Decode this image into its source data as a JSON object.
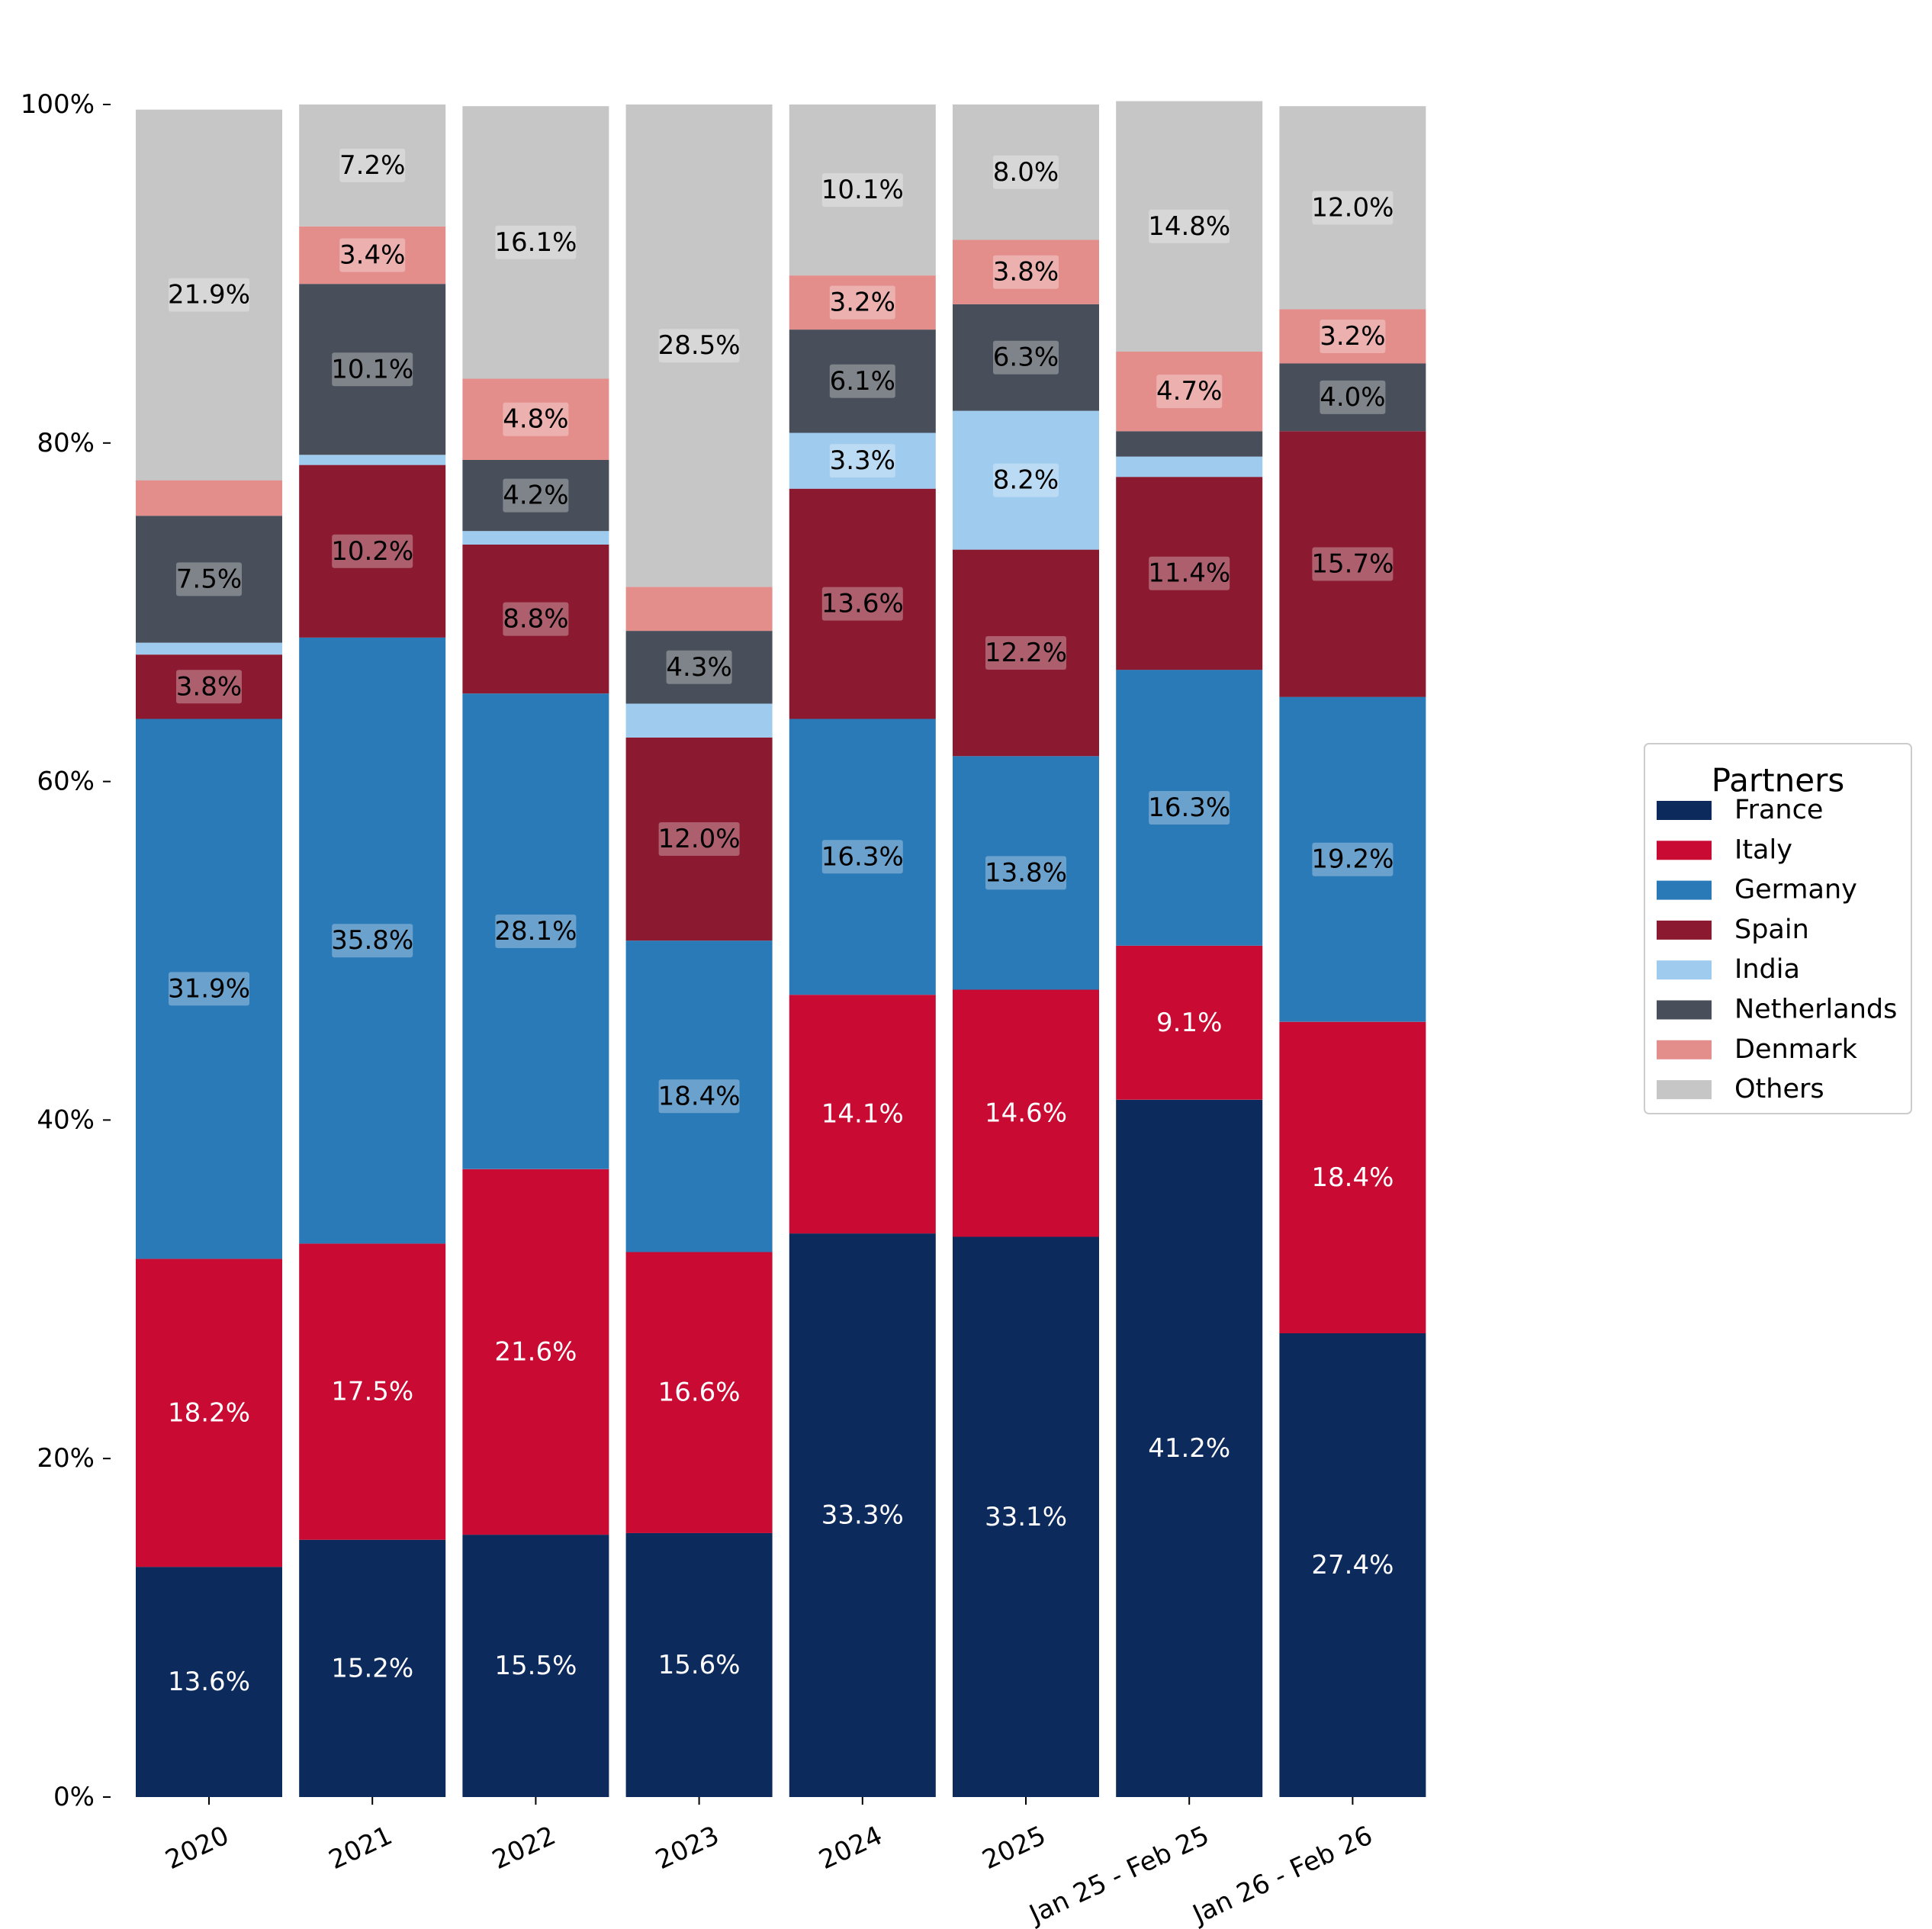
{
  "chart_data": {
    "type": "bar",
    "stacked": true,
    "normalized": true,
    "title": "",
    "xlabel": "",
    "ylabel": "",
    "ylim": [
      0,
      100
    ],
    "yticks": [
      "0%",
      "20%",
      "40%",
      "60%",
      "80%",
      "100%"
    ],
    "categories": [
      "2020",
      "2021",
      "2022",
      "2023",
      "2024",
      "2025",
      "Jan 25 - Feb 25",
      "Jan 26 - Feb 26"
    ],
    "legend": {
      "title": "Partners",
      "position": "right"
    },
    "grid": false,
    "series": [
      {
        "name": "France",
        "color": "#0c2a5b",
        "text_color": "#ffffff",
        "label_box": false,
        "values": [
          13.6,
          15.2,
          15.5,
          15.6,
          33.3,
          33.1,
          41.2,
          27.4
        ],
        "labels": [
          "13.6%",
          "15.2%",
          "15.5%",
          "15.6%",
          "33.3%",
          "33.1%",
          "41.2%",
          "27.4%"
        ]
      },
      {
        "name": "Italy",
        "color": "#c90a33",
        "text_color": "#ffffff",
        "label_box": false,
        "values": [
          18.2,
          17.5,
          21.6,
          16.6,
          14.1,
          14.6,
          9.1,
          18.4
        ],
        "labels": [
          "18.2%",
          "17.5%",
          "21.6%",
          "16.6%",
          "14.1%",
          "14.6%",
          "9.1%",
          "18.4%"
        ]
      },
      {
        "name": "Germany",
        "color": "#2a7ab8",
        "text_color": "#000000",
        "label_box": true,
        "values": [
          31.9,
          35.8,
          28.1,
          18.4,
          16.3,
          13.8,
          16.3,
          19.2
        ],
        "labels": [
          "31.9%",
          "35.8%",
          "28.1%",
          "18.4%",
          "16.3%",
          "13.8%",
          "16.3%",
          "19.2%"
        ]
      },
      {
        "name": "Spain",
        "color": "#8b1a30",
        "text_color": "#000000",
        "label_box": true,
        "values": [
          3.8,
          10.2,
          8.8,
          12.0,
          13.6,
          12.2,
          11.4,
          15.7
        ],
        "labels": [
          "3.8%",
          "10.2%",
          "8.8%",
          "12.0%",
          "13.6%",
          "12.2%",
          "11.4%",
          "15.7%"
        ]
      },
      {
        "name": "India",
        "color": "#9ecbee",
        "text_color": "#000000",
        "label_box": true,
        "values": [
          0.7,
          0.6,
          0.8,
          2.0,
          3.3,
          8.2,
          1.2,
          0.0
        ],
        "labels": [
          "",
          "",
          "",
          "",
          "3.3%",
          "8.2%",
          "",
          ""
        ]
      },
      {
        "name": "Netherlands",
        "color": "#484f5a",
        "text_color": "#000000",
        "label_box": true,
        "values": [
          7.5,
          10.1,
          4.2,
          4.3,
          6.1,
          6.3,
          1.5,
          4.0
        ],
        "labels": [
          "7.5%",
          "10.1%",
          "4.2%",
          "4.3%",
          "6.1%",
          "6.3%",
          "",
          "4.0%"
        ]
      },
      {
        "name": "Denmark",
        "color": "#e48e8c",
        "text_color": "#000000",
        "label_box": true,
        "values": [
          2.1,
          3.4,
          4.8,
          2.6,
          3.2,
          3.8,
          4.7,
          3.2
        ],
        "labels": [
          "",
          "3.4%",
          "4.8%",
          "",
          "3.2%",
          "3.8%",
          "4.7%",
          "3.2%"
        ]
      },
      {
        "name": "Others",
        "color": "#c6c6c6",
        "text_color": "#000000",
        "label_box": true,
        "values": [
          21.9,
          7.2,
          16.1,
          28.5,
          10.1,
          8.0,
          14.8,
          12.0
        ],
        "labels": [
          "21.9%",
          "7.2%",
          "16.1%",
          "28.5%",
          "10.1%",
          "8.0%",
          "14.8%",
          "12.0%"
        ]
      }
    ]
  }
}
